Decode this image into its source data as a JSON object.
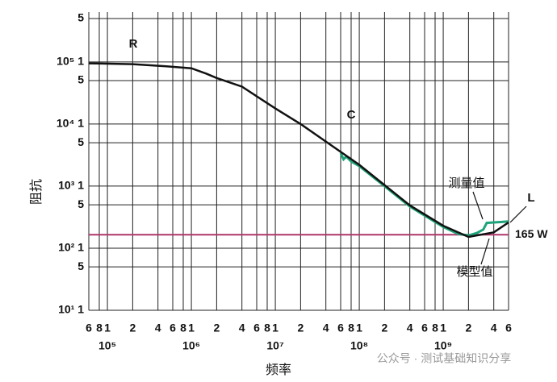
{
  "chart_data": {
    "type": "line",
    "xlabel": "频率",
    "ylabel": "阻抗",
    "xscale": "log",
    "yscale": "log",
    "grid": true,
    "xlim": [
      60000,
      6000000000
    ],
    "ylim": [
      10,
      500000
    ],
    "xticks": [
      {
        "value": 60000,
        "label": "6"
      },
      {
        "value": 80000,
        "label": "8"
      },
      {
        "value": 100000,
        "label": "1"
      },
      {
        "value": 200000,
        "label": "2"
      },
      {
        "value": 400000,
        "label": "4"
      },
      {
        "value": 600000,
        "label": "6"
      },
      {
        "value": 800000,
        "label": "8"
      },
      {
        "value": 1000000,
        "label": "1"
      },
      {
        "value": 2000000,
        "label": "2"
      },
      {
        "value": 4000000,
        "label": "4"
      },
      {
        "value": 6000000,
        "label": "6"
      },
      {
        "value": 8000000,
        "label": "8"
      },
      {
        "value": 10000000,
        "label": "1"
      },
      {
        "value": 20000000,
        "label": "2"
      },
      {
        "value": 40000000,
        "label": "4"
      },
      {
        "value": 60000000,
        "label": "6"
      },
      {
        "value": 80000000,
        "label": "8"
      },
      {
        "value": 100000000,
        "label": "1"
      },
      {
        "value": 200000000,
        "label": "2"
      },
      {
        "value": 400000000,
        "label": "4"
      },
      {
        "value": 600000000,
        "label": "6"
      },
      {
        "value": 800000000,
        "label": "8"
      },
      {
        "value": 1000000000,
        "label": "1"
      },
      {
        "value": 2000000000,
        "label": "2"
      },
      {
        "value": 4000000000,
        "label": "4"
      },
      {
        "value": 6000000000,
        "label": "6"
      }
    ],
    "xdecade_labels": [
      {
        "value": 100000,
        "label": "10⁵"
      },
      {
        "value": 1000000,
        "label": "10⁶"
      },
      {
        "value": 10000000,
        "label": "10⁷"
      },
      {
        "value": 100000000,
        "label": "10⁸"
      },
      {
        "value": 1000000000,
        "label": "10⁹"
      }
    ],
    "yticks": [
      {
        "value": 500000,
        "label": "5"
      },
      {
        "value": 100000,
        "label": "10⁵ 1"
      },
      {
        "value": 50000,
        "label": "5"
      },
      {
        "value": 10000,
        "label": "10⁴ 1"
      },
      {
        "value": 5000,
        "label": "5"
      },
      {
        "value": 1000,
        "label": "10³ 1"
      },
      {
        "value": 500,
        "label": "5"
      },
      {
        "value": 100,
        "label": "10² 1"
      },
      {
        "value": 50,
        "label": "5"
      },
      {
        "value": 10,
        "label": "10¹ 1"
      }
    ],
    "hline": {
      "value": 165,
      "label": "165 W",
      "color": "#b0346a"
    },
    "annotations": [
      "R",
      "C",
      "L"
    ],
    "watermark": "公众号 · 测试基础知识分享",
    "series": [
      {
        "name": "测量值",
        "color": "#1fa37a",
        "x": [
          60000000,
          65000000,
          70000000,
          80000000,
          100000000,
          200000000,
          400000000,
          1000000000,
          1500000000,
          2000000000,
          2500000000,
          3000000000,
          3300000000,
          4000000000,
          5000000000,
          6000000000
        ],
        "values": [
          3400,
          2700,
          3000,
          2500,
          2100,
          1000,
          470,
          220,
          170,
          160,
          175,
          200,
          255,
          260,
          265,
          270
        ]
      },
      {
        "name": "模型值",
        "color": "#111111",
        "x": [
          60000,
          200000,
          500000,
          1000000,
          1500000,
          2000000,
          4000000,
          10000000,
          20000000,
          100000000,
          400000000,
          1000000000,
          2000000000,
          4000000000,
          6000000000
        ],
        "values": [
          95000,
          92000,
          85000,
          79000,
          65000,
          55000,
          40000,
          17800,
          10000,
          2200,
          490,
          230,
          152,
          180,
          260
        ]
      }
    ]
  }
}
